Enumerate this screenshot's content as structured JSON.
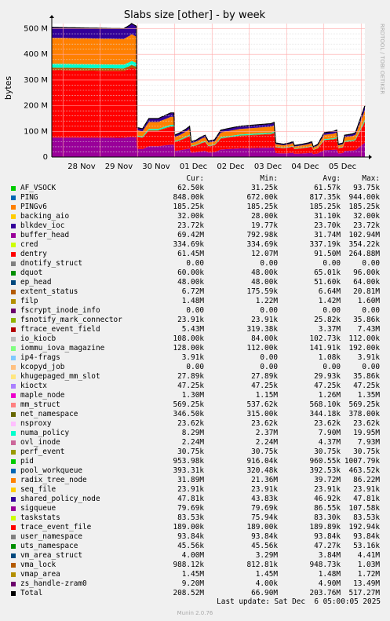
{
  "chart_data": {
    "type": "area",
    "title": "Slabs size [other] - by week",
    "ylabel": "bytes",
    "ylim": [
      0,
      520000000
    ],
    "yticks": [
      "0",
      "100 M",
      "200 M",
      "300 M",
      "400 M",
      "500 M"
    ],
    "xticks": [
      "28 Nov",
      "29 Nov",
      "30 Nov",
      "01 Dec",
      "02 Dec",
      "03 Dec",
      "04 Dec",
      "05 Dec"
    ],
    "grid": true,
    "side_text": "RRDTOOL / TOBI OETIKER",
    "total_profile": [
      [
        0.0,
        505
      ],
      [
        0.23,
        500
      ],
      [
        0.25,
        515
      ],
      [
        0.255,
        520
      ],
      [
        0.27,
        510
      ],
      [
        0.272,
        115
      ],
      [
        0.29,
        110
      ],
      [
        0.31,
        150
      ],
      [
        0.34,
        150
      ],
      [
        0.38,
        172
      ],
      [
        0.39,
        172
      ],
      [
        0.392,
        85
      ],
      [
        0.41,
        95
      ],
      [
        0.43,
        110
      ],
      [
        0.44,
        120
      ],
      [
        0.445,
        60
      ],
      [
        0.46,
        65
      ],
      [
        0.48,
        80
      ],
      [
        0.49,
        85
      ],
      [
        0.5,
        62
      ],
      [
        0.52,
        67
      ],
      [
        0.54,
        105
      ],
      [
        0.6,
        120
      ],
      [
        0.65,
        125
      ],
      [
        0.7,
        130
      ],
      [
        0.71,
        135
      ],
      [
        0.715,
        55
      ],
      [
        0.74,
        50
      ],
      [
        0.76,
        55
      ],
      [
        0.77,
        60
      ],
      [
        0.775,
        45
      ],
      [
        0.8,
        50
      ],
      [
        0.82,
        55
      ],
      [
        0.83,
        60
      ],
      [
        0.835,
        40
      ],
      [
        0.85,
        50
      ],
      [
        0.87,
        95
      ],
      [
        0.9,
        100
      ],
      [
        0.91,
        105
      ],
      [
        0.915,
        50
      ],
      [
        0.93,
        55
      ],
      [
        0.935,
        85
      ],
      [
        0.96,
        90
      ],
      [
        0.97,
        95
      ],
      [
        1.0,
        200
      ]
    ]
  },
  "legend": {
    "headers": [
      "Cur:",
      "Min:",
      "Avg:",
      "Max:"
    ],
    "items": [
      {
        "name": "AF_VSOCK",
        "color": "#00cc00",
        "cur": "62.50k",
        "min": "31.25k",
        "avg": "61.57k",
        "max": "93.75k"
      },
      {
        "name": "PING",
        "color": "#0066b3",
        "cur": "848.00k",
        "min": "672.00k",
        "avg": "817.35k",
        "max": "944.00k"
      },
      {
        "name": "PINGv6",
        "color": "#ff8000",
        "cur": "185.25k",
        "min": "185.25k",
        "avg": "185.25k",
        "max": "185.25k"
      },
      {
        "name": "backing_aio",
        "color": "#ffcc00",
        "cur": "32.00k",
        "min": "28.00k",
        "avg": "31.10k",
        "max": "32.00k"
      },
      {
        "name": "blkdev_ioc",
        "color": "#330099",
        "cur": "23.72k",
        "min": "19.77k",
        "avg": "23.70k",
        "max": "23.72k"
      },
      {
        "name": "buffer_head",
        "color": "#990099",
        "cur": "69.42M",
        "min": "792.98k",
        "avg": "31.74M",
        "max": "102.94M"
      },
      {
        "name": "cred",
        "color": "#ccff00",
        "cur": "334.69k",
        "min": "334.69k",
        "avg": "337.19k",
        "max": "354.22k"
      },
      {
        "name": "dentry",
        "color": "#ff0000",
        "cur": "61.45M",
        "min": "12.07M",
        "avg": "91.50M",
        "max": "264.88M"
      },
      {
        "name": "dnotify_struct",
        "color": "#808080",
        "cur": "0.00",
        "min": "0.00",
        "avg": "0.00",
        "max": "0.00"
      },
      {
        "name": "dquot",
        "color": "#008f00",
        "cur": "60.00k",
        "min": "48.00k",
        "avg": "65.01k",
        "max": "96.00k"
      },
      {
        "name": "ep_head",
        "color": "#00487d",
        "cur": "48.00k",
        "min": "48.00k",
        "avg": "51.60k",
        "max": "64.00k"
      },
      {
        "name": "extent_status",
        "color": "#b35a00",
        "cur": "6.72M",
        "min": "175.59k",
        "avg": "6.64M",
        "max": "20.81M"
      },
      {
        "name": "filp",
        "color": "#b38f00",
        "cur": "1.48M",
        "min": "1.22M",
        "avg": "1.42M",
        "max": "1.60M"
      },
      {
        "name": "fscrypt_inode_info",
        "color": "#6b006b",
        "cur": "0.00",
        "min": "0.00",
        "avg": "0.00",
        "max": "0.00"
      },
      {
        "name": "fsnotify_mark_connector",
        "color": "#8fb300",
        "cur": "23.91k",
        "min": "23.91k",
        "avg": "25.82k",
        "max": "35.86k"
      },
      {
        "name": "ftrace_event_field",
        "color": "#b30000",
        "cur": "5.43M",
        "min": "319.38k",
        "avg": "3.37M",
        "max": "7.43M"
      },
      {
        "name": "io_kiocb",
        "color": "#bebebe",
        "cur": "108.00k",
        "min": "84.00k",
        "avg": "102.73k",
        "max": "112.00k"
      },
      {
        "name": "iommu_iova_magazine",
        "color": "#80ff80",
        "cur": "128.00k",
        "min": "112.00k",
        "avg": "141.91k",
        "max": "192.00k"
      },
      {
        "name": "ip4-frags",
        "color": "#80c9ff",
        "cur": "3.91k",
        "min": "0.00",
        "avg": "1.08k",
        "max": "3.91k"
      },
      {
        "name": "kcopyd_job",
        "color": "#ffc080",
        "cur": "0.00",
        "min": "0.00",
        "avg": "0.00",
        "max": "0.00"
      },
      {
        "name": "khugepaged_mm_slot",
        "color": "#ffe680",
        "cur": "27.89k",
        "min": "27.89k",
        "avg": "29.93k",
        "max": "35.86k"
      },
      {
        "name": "kioctx",
        "color": "#aa80ff",
        "cur": "47.25k",
        "min": "47.25k",
        "avg": "47.25k",
        "max": "47.25k"
      },
      {
        "name": "maple_node",
        "color": "#ee00cc",
        "cur": "1.30M",
        "min": "1.15M",
        "avg": "1.26M",
        "max": "1.35M"
      },
      {
        "name": "mm_struct",
        "color": "#ff8080",
        "cur": "569.25k",
        "min": "537.62k",
        "avg": "568.10k",
        "max": "569.25k"
      },
      {
        "name": "net_namespace",
        "color": "#666600",
        "cur": "346.50k",
        "min": "315.00k",
        "avg": "344.18k",
        "max": "378.00k"
      },
      {
        "name": "nsproxy",
        "color": "#ffbfff",
        "cur": "23.62k",
        "min": "23.62k",
        "avg": "23.62k",
        "max": "23.62k"
      },
      {
        "name": "numa_policy",
        "color": "#00ffcc",
        "cur": "8.29M",
        "min": "2.37M",
        "avg": "7.90M",
        "max": "19.95M"
      },
      {
        "name": "ovl_inode",
        "color": "#cc6699",
        "cur": "2.24M",
        "min": "2.24M",
        "avg": "4.37M",
        "max": "7.93M"
      },
      {
        "name": "perf_event",
        "color": "#999900",
        "cur": "30.75k",
        "min": "30.75k",
        "avg": "30.75k",
        "max": "30.75k"
      },
      {
        "name": "pid",
        "color": "#00cc00",
        "cur": "953.98k",
        "min": "916.04k",
        "avg": "960.55k",
        "max": "1007.79k"
      },
      {
        "name": "pool_workqueue",
        "color": "#0066b3",
        "cur": "393.31k",
        "min": "320.48k",
        "avg": "392.53k",
        "max": "463.52k"
      },
      {
        "name": "radix_tree_node",
        "color": "#ff8000",
        "cur": "31.89M",
        "min": "21.36M",
        "avg": "39.72M",
        "max": "86.22M"
      },
      {
        "name": "seq_file",
        "color": "#ffcc00",
        "cur": "23.91k",
        "min": "23.91k",
        "avg": "23.91k",
        "max": "23.91k"
      },
      {
        "name": "shared_policy_node",
        "color": "#330099",
        "cur": "47.81k",
        "min": "43.83k",
        "avg": "46.92k",
        "max": "47.81k"
      },
      {
        "name": "sigqueue",
        "color": "#990099",
        "cur": "79.69k",
        "min": "79.69k",
        "avg": "86.55k",
        "max": "107.58k"
      },
      {
        "name": "taskstats",
        "color": "#ccff00",
        "cur": "83.53k",
        "min": "75.94k",
        "avg": "83.30k",
        "max": "83.53k"
      },
      {
        "name": "trace_event_file",
        "color": "#ff0000",
        "cur": "189.00k",
        "min": "189.00k",
        "avg": "189.89k",
        "max": "192.94k"
      },
      {
        "name": "user_namespace",
        "color": "#808080",
        "cur": "93.84k",
        "min": "93.84k",
        "avg": "93.84k",
        "max": "93.84k"
      },
      {
        "name": "uts_namespace",
        "color": "#008f00",
        "cur": "45.56k",
        "min": "45.56k",
        "avg": "47.27k",
        "max": "53.16k"
      },
      {
        "name": "vm_area_struct",
        "color": "#00487d",
        "cur": "4.00M",
        "min": "3.29M",
        "avg": "3.84M",
        "max": "4.41M"
      },
      {
        "name": "vma_lock",
        "color": "#b35a00",
        "cur": "988.12k",
        "min": "812.81k",
        "avg": "948.73k",
        "max": "1.03M"
      },
      {
        "name": "vmap_area",
        "color": "#b38f00",
        "cur": "1.45M",
        "min": "1.45M",
        "avg": "1.48M",
        "max": "1.72M"
      },
      {
        "name": "zs_handle-zram0",
        "color": "#6b006b",
        "cur": "9.20M",
        "min": "4.00k",
        "avg": "4.90M",
        "max": "13.49M"
      },
      {
        "name": "Total",
        "color": "#000000",
        "cur": "208.52M",
        "min": "66.90M",
        "avg": "203.76M",
        "max": "517.27M"
      }
    ]
  },
  "footer": {
    "last_update": "Last update: Sat Dec  6 05:00:05 2025",
    "version": "Munin 2.0.76"
  }
}
